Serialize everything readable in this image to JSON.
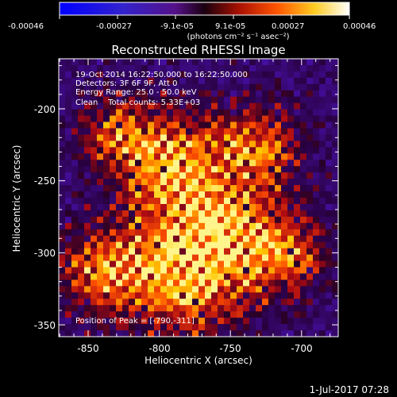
{
  "colorbar": {
    "tick_labels": [
      "-0.00046",
      "-0.00027",
      "-9.1e-05",
      "9.1e-05",
      "0.00027",
      "0.00046"
    ],
    "unit_label": "(photons cm⁻² s⁻¹ asec⁻²)"
  },
  "image": {
    "title": "Reconstructed RHESSI Image",
    "info_lines": [
      "19-Oct-2014 16:22:50.000 to 16:22:50.000",
      "Detectors: 3F 6F 9F, Att 0",
      "Energy Range: 25.0 - 50.0 keV",
      "Clean    Total counts: 5.33E+03"
    ],
    "peak_text": "Position of Peak = [-790,-311]"
  },
  "axes": {
    "xlabel": "Heliocentric X (arcsec)",
    "ylabel": "Heliocentric Y (arcsec)",
    "xticks": [
      "-850",
      "-800",
      "-750",
      "-700"
    ],
    "yticks": [
      "-200",
      "-250",
      "-300",
      "-350"
    ]
  },
  "footer": {
    "date": "1-Jul-2017 07:28"
  }
}
